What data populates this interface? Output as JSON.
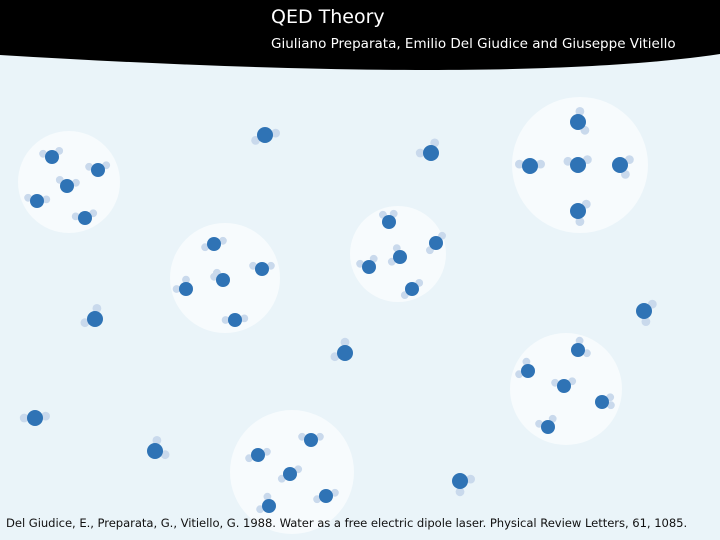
{
  "title": "QED Theory",
  "subtitle": "Giuliano Preparata, Emilio Del Giudice and Giuseppe Vitiello",
  "citation": "Del Giudice, E., Preparata, G., Vitiello, G. 1988. Water as a free electric dipole laser. Physical Review Letters, 61, 1085.",
  "colors": {
    "header": "#000000",
    "background": "#eaf4f9",
    "domain_fill": "#f7fbfd",
    "oxygen": "#2f73b5",
    "hydrogen": "#c9d9ec"
  },
  "icons": {
    "molecule": "water-molecule-icon",
    "coherence_domain": "coherence-domain-circle"
  }
}
